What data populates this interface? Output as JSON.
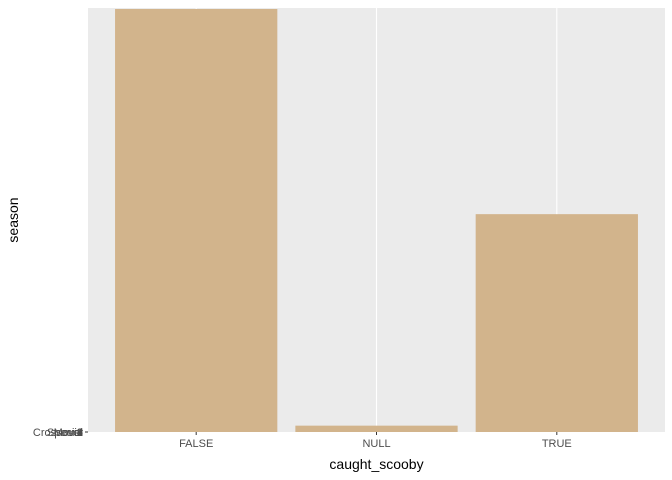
{
  "chart_data": {
    "type": "bar",
    "xlabel": "caught_scooby",
    "ylabel": "season",
    "categories": [
      "FALSE",
      "NULL",
      "TRUE"
    ],
    "values": [
      1.0,
      0.015,
      0.515
    ],
    "y_tick_labels": [
      "1",
      "2",
      "3",
      "4",
      "Crossover",
      "Movie",
      "Special"
    ],
    "grid": true,
    "colors": {
      "bar": "#d2b48c",
      "panel": "#ebebeb",
      "grid": "#ffffff"
    }
  }
}
